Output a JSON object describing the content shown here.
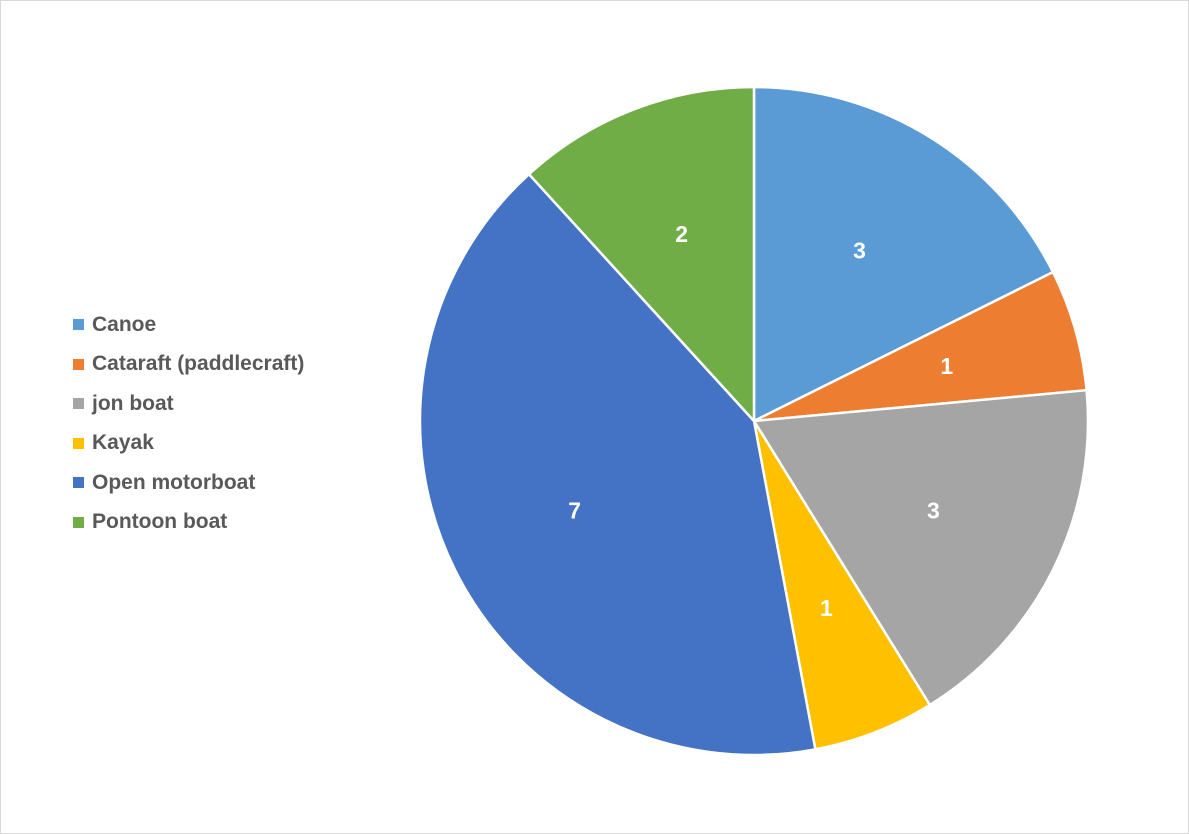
{
  "chart_data": {
    "type": "pie",
    "categories": [
      "Canoe",
      "Cataraft (paddlecraft)",
      "jon boat",
      "Kayak",
      "Open motorboat",
      "Pontoon boat"
    ],
    "values": [
      3,
      1,
      3,
      1,
      7,
      2
    ],
    "colors": [
      "#5B9BD5",
      "#ED7D31",
      "#A5A5A5",
      "#FFC000",
      "#4472C4",
      "#70AD47"
    ],
    "data_labels": [
      "3",
      "1",
      "3",
      "1",
      "7",
      "2"
    ],
    "legend_position": "left",
    "start_angle_degrees": 0,
    "direction": "clockwise"
  }
}
